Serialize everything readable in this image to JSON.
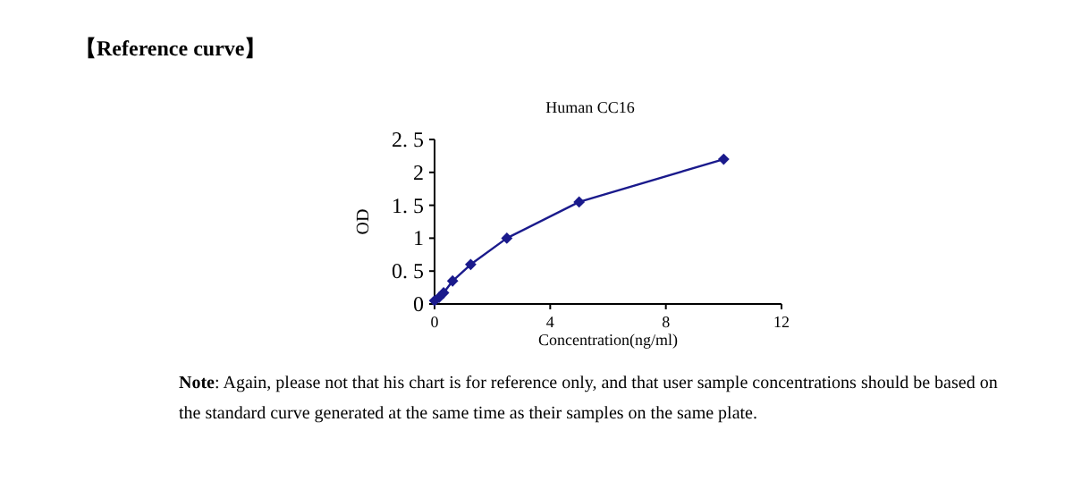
{
  "chart_data": {
    "type": "line",
    "title": "Human CC16",
    "xlabel": "Concentration(ng/ml)",
    "ylabel": "OD",
    "x": [
      0,
      0.156,
      0.313,
      0.625,
      1.25,
      2.5,
      5,
      10
    ],
    "series": [
      {
        "color": "#1a1a8c",
        "values": [
          0.05,
          0.1,
          0.17,
          0.35,
          0.6,
          1.0,
          1.55,
          2.2
        ]
      }
    ],
    "xlim": [
      0,
      12
    ],
    "xticks": [
      0,
      4,
      8,
      12
    ],
    "ylim": [
      0,
      2.5
    ],
    "yticks": [
      0,
      {
        "value": 0.5,
        "label": "0. 5"
      },
      1,
      {
        "value": 1.5,
        "label": "1. 5"
      },
      2,
      {
        "value": 2.5,
        "label": "2. 5"
      }
    ],
    "marker": "diamond",
    "line_style": "solid",
    "grid": false,
    "annotations": [
      "【Reference curve】",
      "**Note**: Again, please not that his chart is for reference only, and that user sample concentrations should be based on the standard curve generated at the same time as their samples on the same plate."
    ]
  }
}
